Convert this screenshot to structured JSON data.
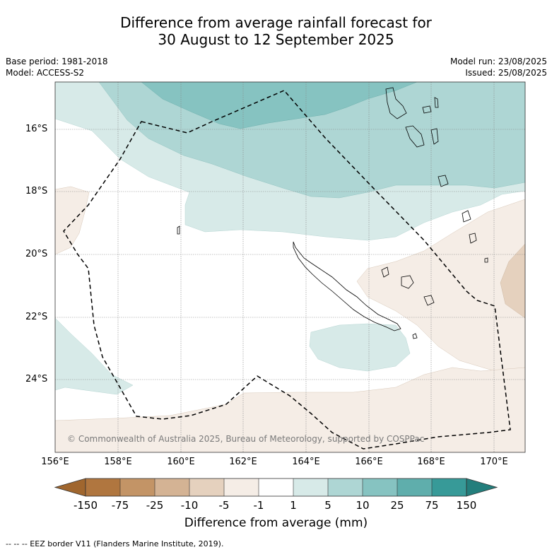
{
  "title_line1": "Difference from average rainfall forecast for",
  "title_line2": "30 August to 12 September 2025",
  "meta": {
    "base_period": "Base period: 1981-2018",
    "model": "Model: ACCESS-S2",
    "model_run": "Model run: 23/08/2025",
    "issued": "Issued: 25/08/2025"
  },
  "map": {
    "lat_labels": [
      "16°S",
      "18°S",
      "20°S",
      "22°S",
      "24°S"
    ],
    "lon_labels": [
      "156°E",
      "158°E",
      "160°E",
      "162°E",
      "164°E",
      "166°E",
      "168°E",
      "170°E"
    ],
    "copyright": "© Commonwealth of Australia 2025, Bureau of Meteorology, supported by COSPPac",
    "border_legend": "-- -- -- EEZ border V11 (Flanders Marine Institute, 2019)."
  },
  "colorbar": {
    "title": "Difference from average (mm)",
    "tick_labels": [
      "-150",
      "-75",
      "-25",
      "-10",
      "-5",
      "-1",
      "1",
      "5",
      "10",
      "25",
      "75",
      "150"
    ],
    "colors": [
      "#a0662e",
      "#b0763f",
      "#c39466",
      "#d4b394",
      "#e5d1be",
      "#f5ede6",
      "#ffffff",
      "#d7eae8",
      "#aed6d4",
      "#86c3c1",
      "#5faeac",
      "#379a98",
      "#237e7c"
    ]
  }
}
